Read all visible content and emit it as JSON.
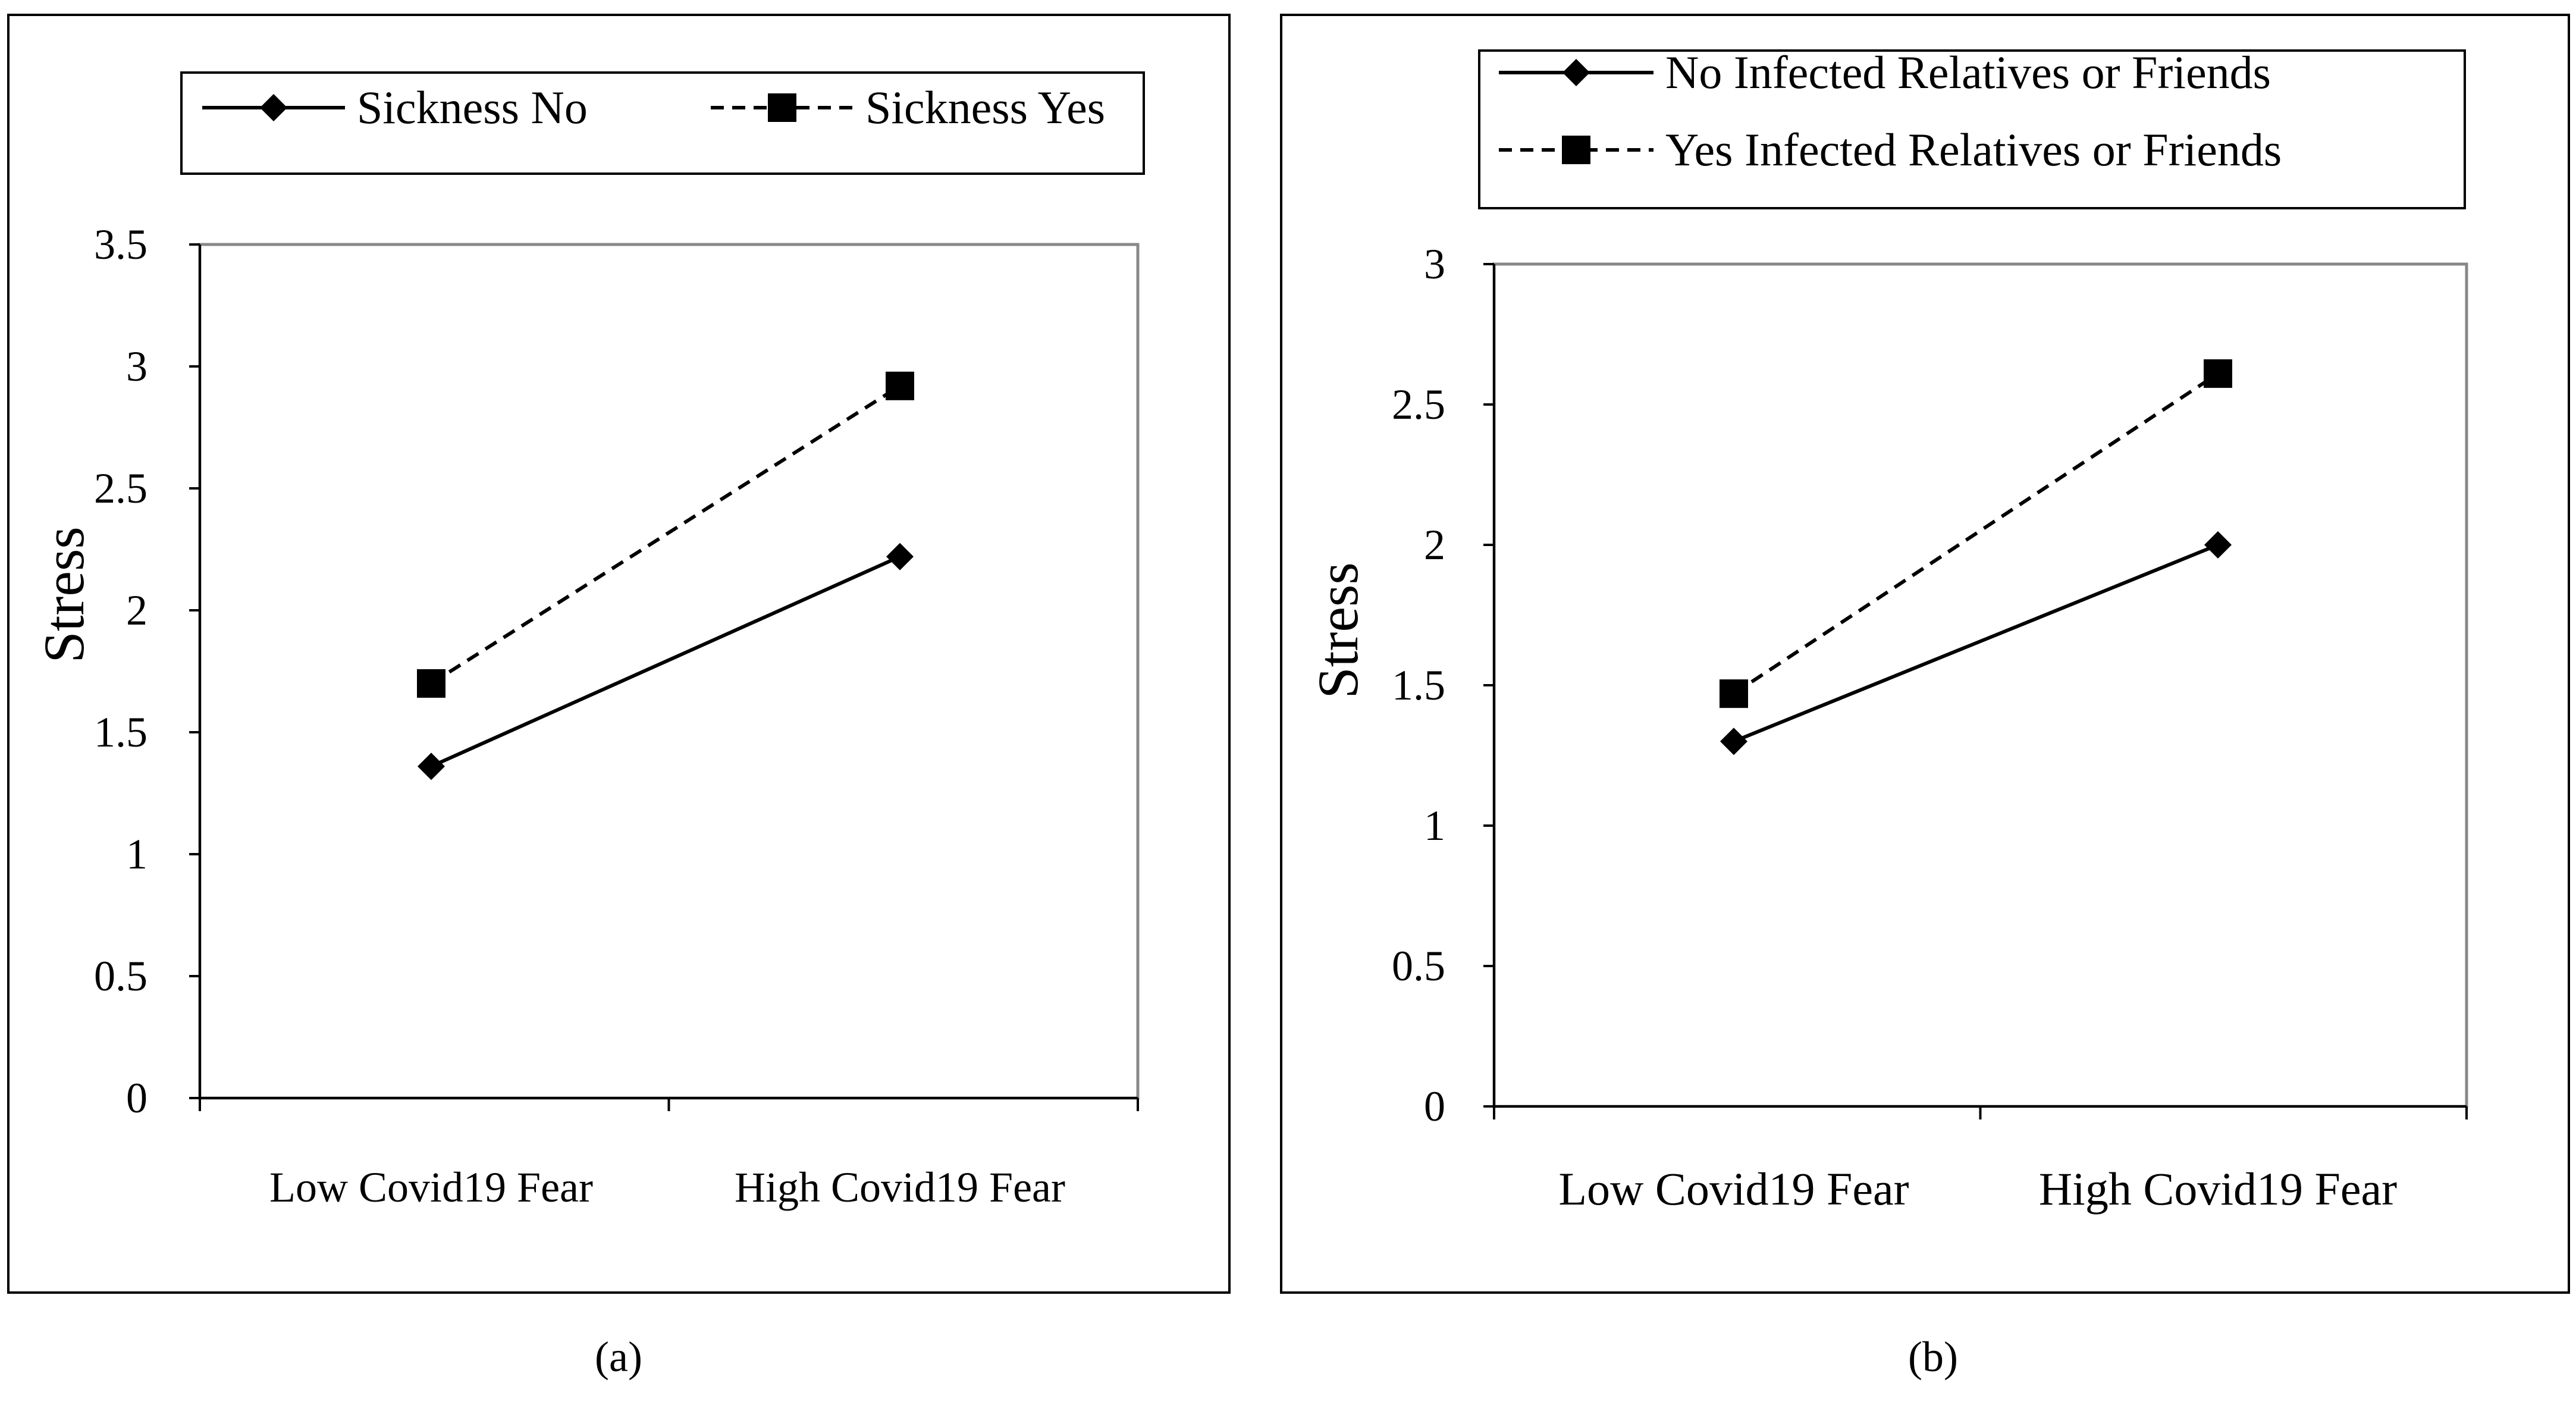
{
  "chart_data": [
    {
      "type": "line",
      "panel": "a",
      "caption": "(a)",
      "categories": [
        "Low Covid19 Fear",
        "High Covid19 Fear"
      ],
      "xlabel": "",
      "ylabel": "Stress",
      "ylim": [
        0,
        3.5
      ],
      "yticks": [
        0,
        0.5,
        1,
        1.5,
        2,
        2.5,
        3,
        3.5
      ],
      "ytick_labels": [
        "0",
        "0.5",
        "1",
        "1.5",
        "2",
        "2.5",
        "3",
        "3.5"
      ],
      "grid": false,
      "legend": "top",
      "series": [
        {
          "name": "Sickness No",
          "values": [
            1.36,
            2.22
          ],
          "line": "solid",
          "marker": "diamond"
        },
        {
          "name": "Sickness Yes",
          "values": [
            1.7,
            2.92
          ],
          "line": "dashed",
          "marker": "square"
        }
      ]
    },
    {
      "type": "line",
      "panel": "b",
      "caption": "(b)",
      "categories": [
        "Low Covid19 Fear",
        "High Covid19 Fear"
      ],
      "xlabel": "",
      "ylabel": "Stress",
      "ylim": [
        0,
        3
      ],
      "yticks": [
        0,
        0.5,
        1,
        1.5,
        2,
        2.5,
        3
      ],
      "ytick_labels": [
        "0",
        "0.5",
        "1",
        "1.5",
        "2",
        "2.5",
        "3"
      ],
      "grid": false,
      "legend": "top",
      "series": [
        {
          "name": "No Infected Relatives or Friends",
          "values": [
            1.3,
            2.0
          ],
          "line": "solid",
          "marker": "diamond"
        },
        {
          "name": "Yes Infected Relatives or Friends",
          "values": [
            1.47,
            2.61
          ],
          "line": "dashed",
          "marker": "square"
        }
      ]
    }
  ]
}
